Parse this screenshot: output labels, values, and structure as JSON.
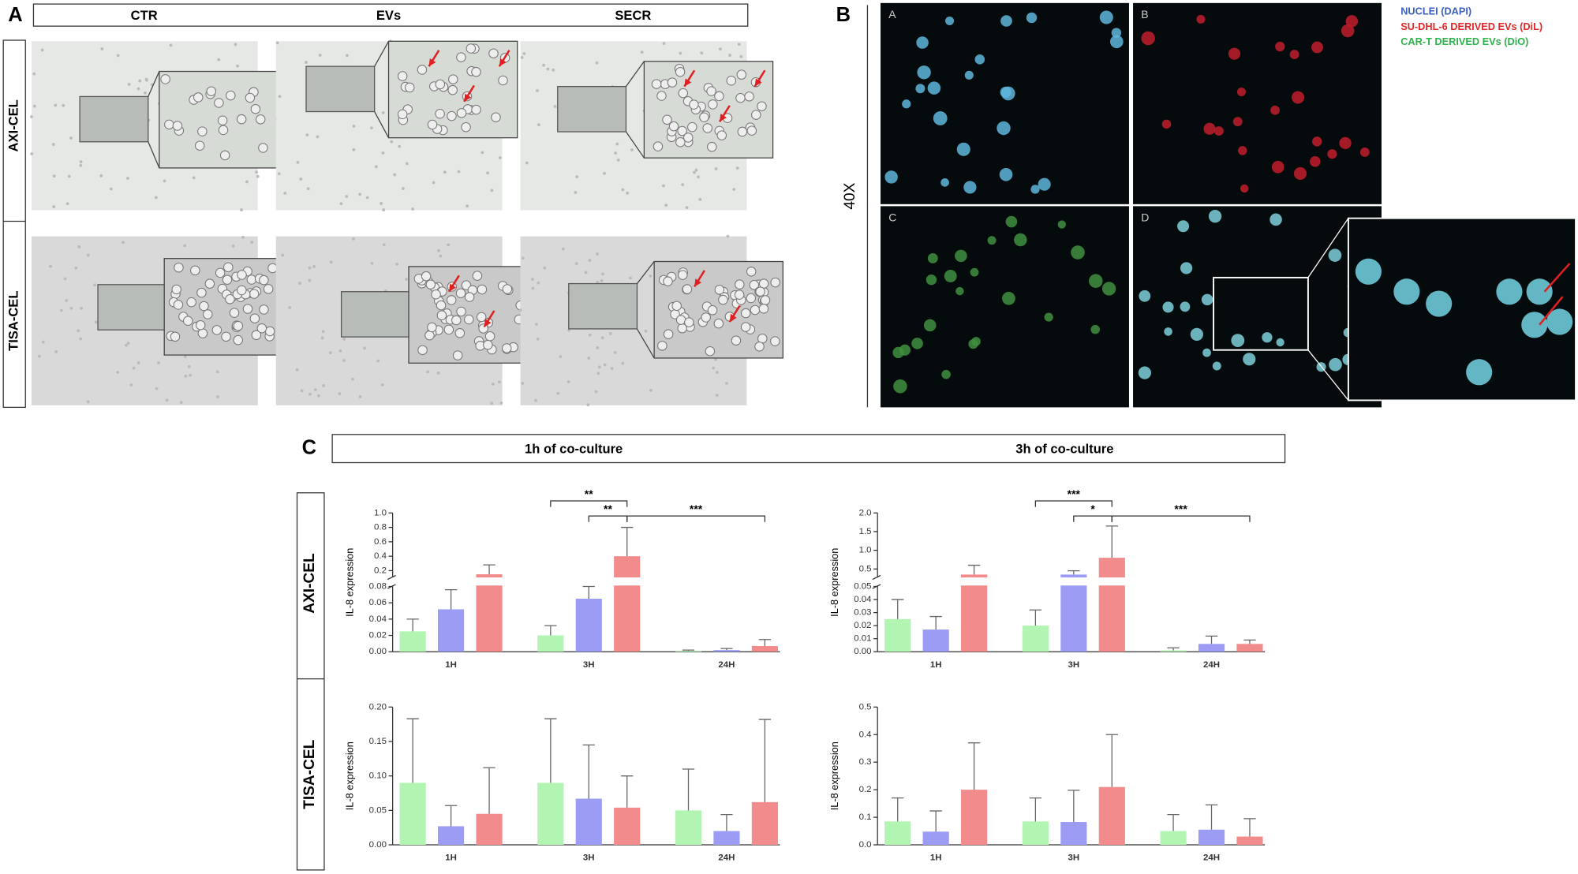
{
  "panel_a": {
    "label": "A",
    "columns": [
      "CTR",
      "EVs",
      "SECR"
    ],
    "rows": [
      "AXI-CEL",
      "TISA-CEL"
    ]
  },
  "panel_b": {
    "label": "B",
    "magnification": "40X",
    "subpanels": [
      "A",
      "B",
      "C",
      "D"
    ],
    "legend": [
      {
        "text": "NUCLEI (DAPI)",
        "color": "#3a5fbf"
      },
      {
        "text": "SU-DHL-6 DERIVED EVs (DiL)",
        "color": "#e02828"
      },
      {
        "text": "CAR-T DERIVED EVs (DiO)",
        "color": "#2db34a"
      }
    ]
  },
  "panel_c": {
    "label": "C",
    "columns": [
      "1h of co-culture",
      "3h of co-culture"
    ],
    "rows": [
      "AXI-CEL",
      "TISA-CEL"
    ]
  },
  "chart_data": [
    {
      "type": "bar",
      "y_label": "IL-8 expression",
      "categories": [
        "1H",
        "3H",
        "24H"
      ],
      "series": [
        {
          "color": "#b2f5b2",
          "values": [
            0.025,
            0.02,
            0.001
          ],
          "errors": [
            0.015,
            0.012,
            0.001
          ]
        },
        {
          "color": "#9c9cf5",
          "values": [
            0.052,
            0.065,
            0.002
          ],
          "errors": [
            0.024,
            0.015,
            0.002
          ]
        },
        {
          "color": "#f28c8c",
          "values": [
            0.15,
            0.4,
            0.007
          ],
          "errors": [
            0.13,
            0.4,
            0.008
          ]
        }
      ],
      "ylim": [
        0,
        1.0
      ],
      "ybreak": [
        0.08,
        0.12
      ],
      "yticks": [
        {
          "value": 0,
          "label": "0.00"
        },
        0.02,
        0.04,
        0.06,
        0.08,
        0.2,
        0.4,
        0.6,
        0.8,
        {
          "value": 1.0,
          "label": "1.0"
        }
      ],
      "significance": [
        {
          "label": "**",
          "from": [
            1,
            0
          ],
          "to": [
            1,
            2
          ]
        },
        {
          "label": "**",
          "from": [
            1,
            1
          ],
          "to": [
            1,
            2
          ]
        },
        {
          "label": "***",
          "from": [
            1,
            2
          ],
          "to": [
            2,
            2
          ]
        }
      ]
    },
    {
      "type": "bar",
      "y_label": "IL-8 expression",
      "categories": [
        "1H",
        "3H",
        "24H"
      ],
      "series": [
        {
          "color": "#b2f5b2",
          "values": [
            0.025,
            0.02,
            0.001
          ],
          "errors": [
            0.015,
            0.012,
            0.002
          ]
        },
        {
          "color": "#9c9cf5",
          "values": [
            0.017,
            0.35,
            0.006
          ],
          "errors": [
            0.01,
            0.1,
            0.006
          ]
        },
        {
          "color": "#f28c8c",
          "values": [
            0.35,
            0.8,
            0.006
          ],
          "errors": [
            0.25,
            0.85,
            0.003
          ]
        }
      ],
      "ylim": [
        0,
        2.0
      ],
      "ybreak": [
        0.05,
        0.3
      ],
      "yticks": [
        {
          "value": 0,
          "label": "0.00"
        },
        0.01,
        0.02,
        0.03,
        0.04,
        0.05,
        0.5,
        {
          "value": 1.0,
          "label": "1.0"
        },
        1.5,
        {
          "value": 2.0,
          "label": "2.0"
        }
      ],
      "significance": [
        {
          "label": "***",
          "from": [
            1,
            0
          ],
          "to": [
            1,
            2
          ]
        },
        {
          "label": "*",
          "from": [
            1,
            1
          ],
          "to": [
            1,
            2
          ]
        },
        {
          "label": "***",
          "from": [
            1,
            2
          ],
          "to": [
            2,
            2
          ]
        }
      ]
    },
    {
      "type": "bar",
      "y_label": "IL-8 expression",
      "categories": [
        "1H",
        "3H",
        "24H"
      ],
      "series": [
        {
          "color": "#b2f5b2",
          "values": [
            0.09,
            0.09,
            0.05
          ],
          "errors": [
            0.093,
            0.093,
            0.06
          ]
        },
        {
          "color": "#9c9cf5",
          "values": [
            0.027,
            0.067,
            0.02
          ],
          "errors": [
            0.03,
            0.078,
            0.024
          ]
        },
        {
          "color": "#f28c8c",
          "values": [
            0.045,
            0.054,
            0.062
          ],
          "errors": [
            0.067,
            0.046,
            0.12
          ]
        }
      ],
      "ylim": [
        0,
        0.2
      ],
      "yticks": [
        {
          "value": 0,
          "label": "0.00"
        },
        0.05,
        {
          "value": 0.1,
          "label": "0.10"
        },
        0.15,
        {
          "value": 0.2,
          "label": "0.20"
        }
      ]
    },
    {
      "type": "bar",
      "y_label": "IL-8 expression",
      "categories": [
        "1H",
        "3H",
        "24H"
      ],
      "series": [
        {
          "color": "#b2f5b2",
          "values": [
            0.085,
            0.085,
            0.05
          ],
          "errors": [
            0.085,
            0.085,
            0.06
          ]
        },
        {
          "color": "#9c9cf5",
          "values": [
            0.048,
            0.083,
            0.055
          ],
          "errors": [
            0.075,
            0.115,
            0.09
          ]
        },
        {
          "color": "#f28c8c",
          "values": [
            0.2,
            0.21,
            0.03
          ],
          "errors": [
            0.17,
            0.19,
            0.065
          ]
        }
      ],
      "ylim": [
        0,
        0.5
      ],
      "yticks": [
        {
          "value": 0,
          "label": "0.0"
        },
        0.1,
        0.2,
        0.3,
        0.4,
        0.5
      ]
    }
  ]
}
